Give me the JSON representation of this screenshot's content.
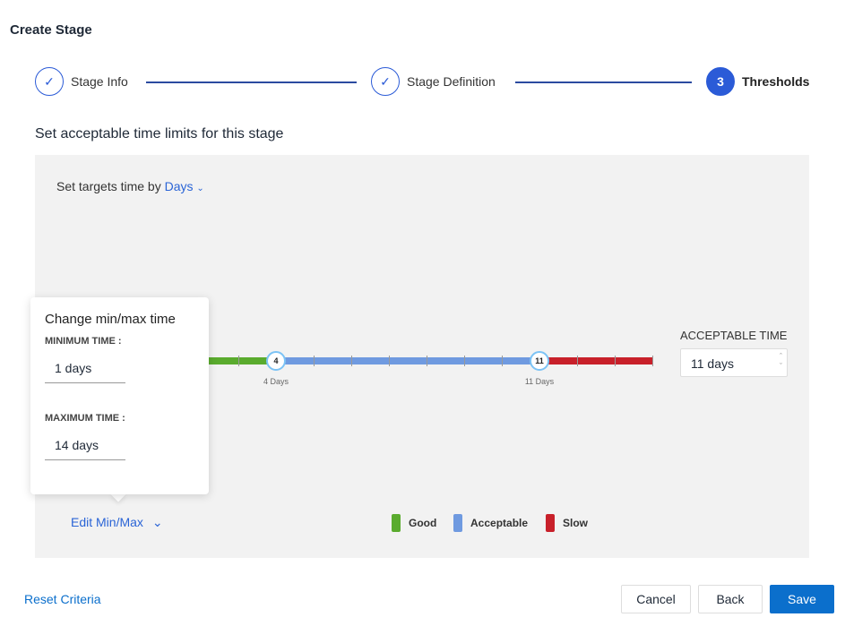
{
  "title": "Create Stage",
  "steps": [
    {
      "label": "Stage Info",
      "status": "complete",
      "icon": "check-icon"
    },
    {
      "label": "Stage Definition",
      "status": "complete",
      "icon": "check-icon"
    },
    {
      "label": "Thresholds",
      "status": "active",
      "number": "3"
    }
  ],
  "subtitle": "Set acceptable time limits for this stage",
  "targets": {
    "prefix": "Set targets time by",
    "unit": "Days"
  },
  "slider": {
    "min": 1,
    "max": 14,
    "good_until": 4,
    "acceptable_until": 11,
    "handles": [
      {
        "value": "4",
        "label": "4 Days"
      },
      {
        "value": "11",
        "label": "11 Days"
      }
    ],
    "colors": {
      "good": "#5aab2e",
      "acceptable": "#6f9ae0",
      "slow": "#c8202a"
    }
  },
  "acceptable_time": {
    "label": "ACCEPTABLE TIME",
    "value": "11 days"
  },
  "popup": {
    "title": "Change min/max time",
    "min_label": "MINIMUM TIME :",
    "min_value": "1 days",
    "max_label": "MAXIMUM TIME :",
    "max_value": "14 days"
  },
  "edit_minmax": "Edit Min/Max",
  "legend": [
    {
      "label": "Good",
      "color": "#5aab2e"
    },
    {
      "label": "Acceptable",
      "color": "#6f9ae0"
    },
    {
      "label": "Slow",
      "color": "#c8202a"
    }
  ],
  "footer": {
    "reset": "Reset Criteria",
    "cancel": "Cancel",
    "back": "Back",
    "save": "Save"
  }
}
